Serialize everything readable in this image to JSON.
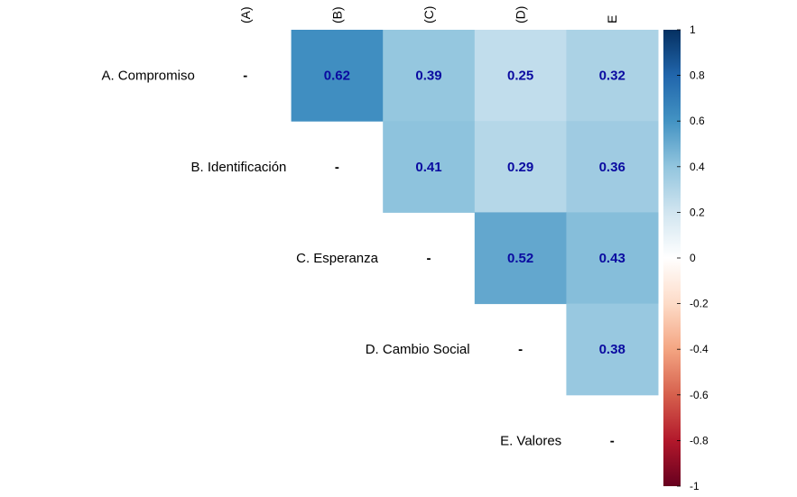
{
  "chart_data": {
    "type": "heatmap",
    "title": "",
    "row_labels": [
      "A. Compromiso",
      "B. Identificación",
      "C. Esperanza",
      "D. Cambio Social",
      "E. Valores"
    ],
    "col_labels": [
      "(A)",
      "(B)",
      "(C)",
      "(D)",
      "E"
    ],
    "diagonal_symbol": "-",
    "cells": [
      {
        "row": 0,
        "col": 1,
        "value": 0.62,
        "label": "0.62"
      },
      {
        "row": 0,
        "col": 2,
        "value": 0.39,
        "label": "0.39"
      },
      {
        "row": 0,
        "col": 3,
        "value": 0.25,
        "label": "0.25"
      },
      {
        "row": 0,
        "col": 4,
        "value": 0.32,
        "label": "0.32"
      },
      {
        "row": 1,
        "col": 2,
        "value": 0.41,
        "label": "0.41"
      },
      {
        "row": 1,
        "col": 3,
        "value": 0.29,
        "label": "0.29"
      },
      {
        "row": 1,
        "col": 4,
        "value": 0.36,
        "label": "0.36"
      },
      {
        "row": 2,
        "col": 3,
        "value": 0.52,
        "label": "0.52"
      },
      {
        "row": 2,
        "col": 4,
        "value": 0.43,
        "label": "0.43"
      },
      {
        "row": 3,
        "col": 4,
        "value": 0.38,
        "label": "0.38"
      }
    ],
    "colorbar": {
      "range": [
        -1,
        1
      ],
      "ticks": [
        "1",
        "0.8",
        "0.6",
        "0.4",
        "0.2",
        "0",
        "-0.2",
        "-0.4",
        "-0.6",
        "-0.8",
        "-1"
      ],
      "tick_values": [
        1,
        0.8,
        0.6,
        0.4,
        0.2,
        0,
        -0.2,
        -0.4,
        -0.6,
        -0.8,
        -1
      ],
      "colors": [
        "#67001f",
        "#b2182b",
        "#d6604d",
        "#f4a582",
        "#fddbc7",
        "#ffffff",
        "#d1e5f0",
        "#92c5de",
        "#4393c3",
        "#2166ac",
        "#053061"
      ],
      "placement": "right"
    },
    "value_label_color": "#0a0aa0"
  }
}
